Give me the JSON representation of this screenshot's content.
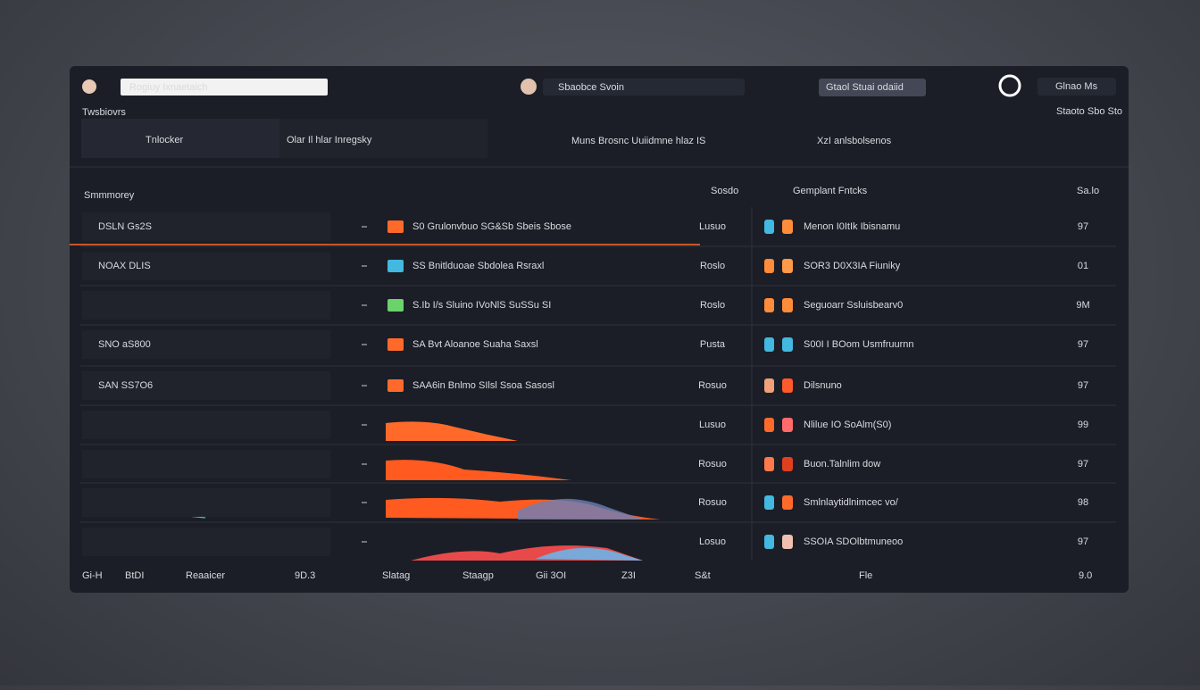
{
  "top_bar": {
    "search": "Rogiuy Ixnaetaich",
    "center_search": "Sbaobce Svoin",
    "button": "Gtaol Stuai odaiid",
    "account": "Glnao Ms"
  },
  "sub_bar": {
    "left": "Twsbiovrs",
    "right": "Staoto Sbo Sto"
  },
  "header_strip": {
    "brand": "Tnlocker",
    "tab": "Olar Il hlar Inregsky",
    "status": "Muns Brosnc Uuiidmne hlaz IS",
    "alerts": "XzI anlsbolsenos"
  },
  "table": {
    "title": "Smmmorey",
    "columns": [
      "Sosdo",
      "Gemplant Fntcks",
      "Sa.lo"
    ],
    "rows": [
      {
        "left": "DSLN Gs2S",
        "mid": "S0 Grulonvbuo SG&Sb Sbeis Sbose",
        "value": "Lusuo",
        "right": "Menon I0ItIk Ibisnamu",
        "num": "97"
      },
      {
        "left": "NOAX DLIS",
        "mid": "SS Bnitlduoae Sbdolea Rsraxl",
        "value": "Roslo",
        "right": "SOR3 D0X3IA Fiuniky",
        "num": "01"
      },
      {
        "left": "",
        "mid": "S.Ib I/s Sluino IVoNlS SuSSu SI",
        "value": "Roslo",
        "right": "Seguoarr Ssluisbearv0",
        "num": "9M"
      },
      {
        "left": "SNO aS800",
        "mid": "SA Bvt Aloanoe Suaha Saxsl",
        "value": "Pusta",
        "right": "S00I I BOom Usmfruurnn",
        "num": "97"
      },
      {
        "left": "SAN SS7O6",
        "mid": "SAA6in Bnlmo SIlsl Ssoa Sasosl",
        "value": "Rosuo",
        "right": "Dilsnuno",
        "num": "97"
      },
      {
        "left": "",
        "mid": "",
        "value": "Lusuo",
        "right": "Nlilue IO SoAlm(S0)",
        "num": "99"
      },
      {
        "left": "",
        "mid": "",
        "value": "Rosuo",
        "right": "Buon.Talnlim dow",
        "num": "97"
      },
      {
        "left": "",
        "mid": "",
        "value": "Rosuo",
        "right": "Smlnlaytidlnimcec vo/",
        "num": "98"
      },
      {
        "left": "",
        "mid": "",
        "value": "Losuo",
        "right": "SSOIA SDOlbtmuneoo",
        "num": "97"
      }
    ]
  },
  "footer": [
    "Gi-H",
    "BtDI",
    "Reaaicer",
    "9D.3",
    "Slatag",
    "Staagp",
    "Gii 3OI",
    "Z3I",
    "S&t",
    "Fle",
    "9.0"
  ]
}
